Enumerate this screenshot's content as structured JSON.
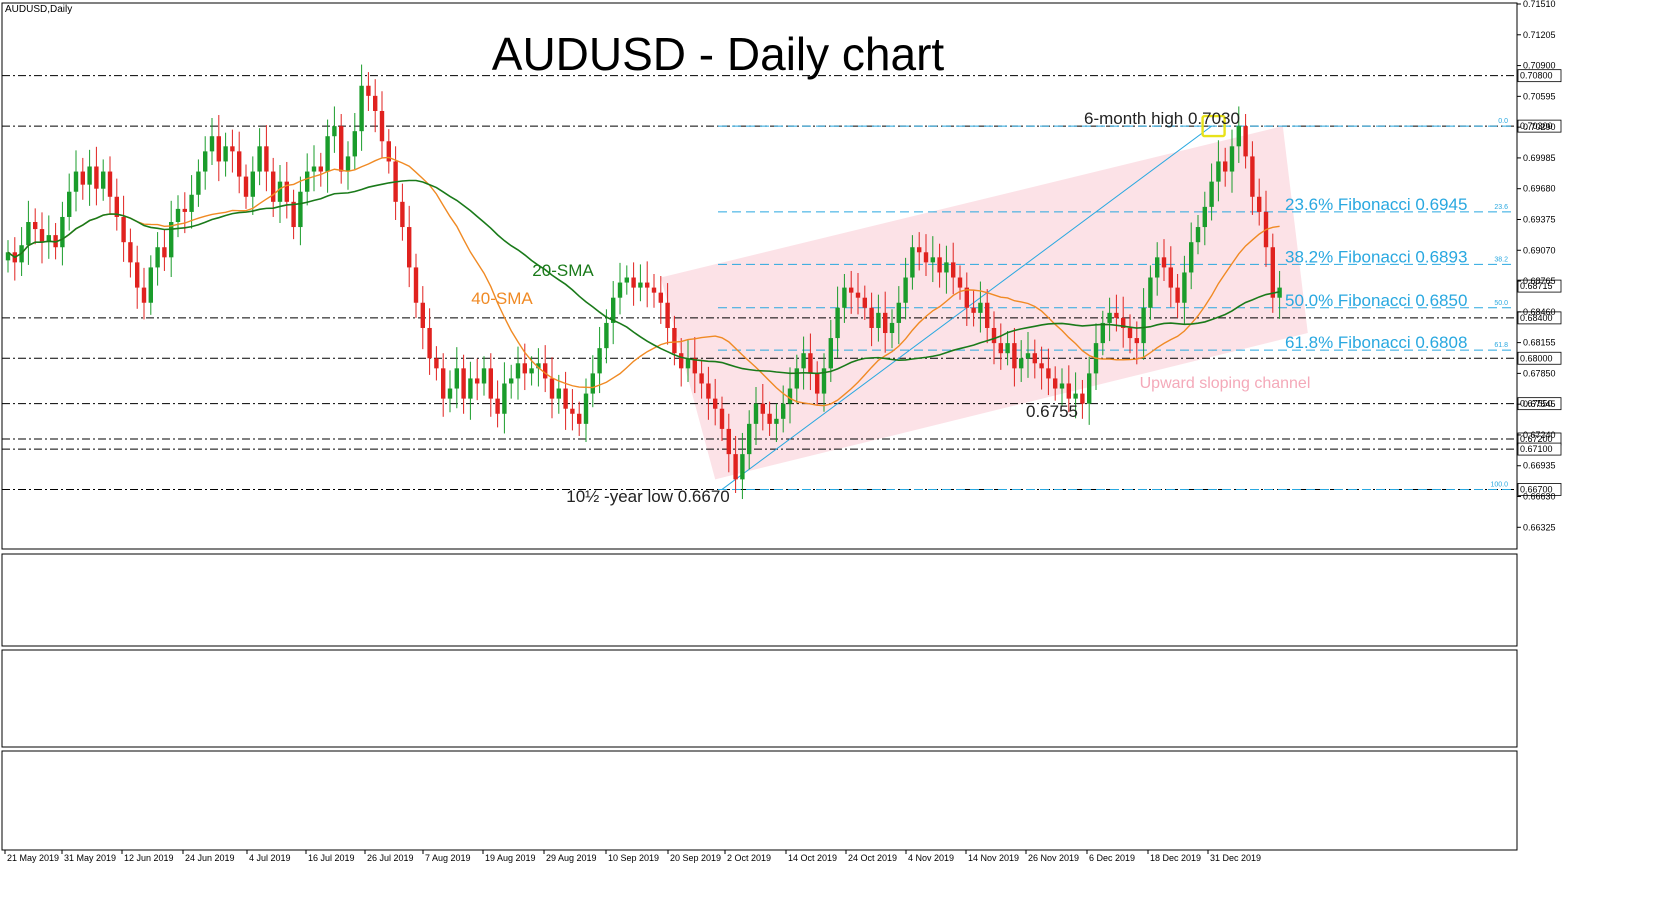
{
  "chart_data": {
    "type": "candlestick",
    "title": "AUDUSD - Daily chart",
    "symbol_label": "AUDUSD,Daily",
    "x_ticks": [
      "21 May 2019",
      "31 May 2019",
      "12 Jun 2019",
      "24 Jun 2019",
      "4 Jul 2019",
      "16 Jul 2019",
      "26 Jul 2019",
      "7 Aug 2019",
      "19 Aug 2019",
      "29 Aug 2019",
      "10 Sep 2019",
      "20 Sep 2019",
      "2 Oct 2019",
      "14 Oct 2019",
      "24 Oct 2019",
      "4 Nov 2019",
      "14 Nov 2019",
      "26 Nov 2019",
      "6 Dec 2019",
      "18 Dec 2019",
      "31 Dec 2019"
    ],
    "y_ticks": [
      "0.71510",
      "0.71205",
      "0.70900",
      "0.70595",
      "0.70290",
      "0.69985",
      "0.69680",
      "0.69375",
      "0.69070",
      "0.68765",
      "0.68460",
      "0.68155",
      "0.67850",
      "0.67545",
      "0.67240",
      "0.66935",
      "0.66630",
      "0.66325"
    ],
    "y_range": [
      0.6611,
      0.7152
    ],
    "current_price": "0.68715",
    "horizontal_levels": [
      {
        "price": 0.708,
        "label": "0.70800"
      },
      {
        "price": 0.703,
        "label": "0.70300"
      },
      {
        "price": 0.684,
        "label": "0.68400"
      },
      {
        "price": 0.68,
        "label": "0.68000"
      },
      {
        "price": 0.6755,
        "label": "0.67550"
      },
      {
        "price": 0.672,
        "label": "0.67200"
      },
      {
        "price": 0.671,
        "label": "0.67100"
      },
      {
        "price": 0.667,
        "label": "0.66700"
      }
    ],
    "fibonacci": [
      {
        "level": "0.0",
        "price": 0.703,
        "text": ""
      },
      {
        "level": "23.6",
        "price": 0.6945,
        "text": "23.6% Fibonacci 0.6945"
      },
      {
        "level": "38.2",
        "price": 0.6893,
        "text": "38.2% Fibonacci 0.6893"
      },
      {
        "level": "50.0",
        "price": 0.685,
        "text": "50.0% Fibonacci 0.6850"
      },
      {
        "level": "61.8",
        "price": 0.6808,
        "text": "61.8% Fibonacci 0.6808"
      },
      {
        "level": "100.0",
        "price": 0.667,
        "text": ""
      }
    ],
    "annotations": {
      "high": "6-month high 0.7030",
      "low": "10½ -year low 0.6670",
      "swing_low": "0.6755",
      "channel": "Upward sloping channel",
      "sma20": "20-SMA",
      "sma40": "40-SMA"
    },
    "closes": [
      0.6905,
      0.6895,
      0.6912,
      0.6935,
      0.6928,
      0.6915,
      0.6922,
      0.691,
      0.694,
      0.6965,
      0.6985,
      0.6972,
      0.699,
      0.6968,
      0.6985,
      0.696,
      0.694,
      0.6915,
      0.6895,
      0.687,
      0.6855,
      0.689,
      0.691,
      0.69,
      0.6935,
      0.6948,
      0.6945,
      0.6962,
      0.6985,
      0.7005,
      0.702,
      0.6995,
      0.701,
      0.7005,
      0.698,
      0.696,
      0.6985,
      0.701,
      0.6985,
      0.6955,
      0.6975,
      0.6955,
      0.693,
      0.6965,
      0.6985,
      0.699,
      0.6985,
      0.702,
      0.703,
      0.6985,
      0.7,
      0.7025,
      0.707,
      0.706,
      0.7045,
      0.7015,
      0.6995,
      0.6955,
      0.693,
      0.689,
      0.6855,
      0.683,
      0.68,
      0.679,
      0.676,
      0.677,
      0.679,
      0.676,
      0.678,
      0.6775,
      0.679,
      0.676,
      0.6745,
      0.6775,
      0.678,
      0.6795,
      0.6785,
      0.679,
      0.6795,
      0.678,
      0.676,
      0.677,
      0.675,
      0.6745,
      0.6735,
      0.6765,
      0.6785,
      0.681,
      0.6835,
      0.686,
      0.6875,
      0.688,
      0.687,
      0.6875,
      0.687,
      0.6865,
      0.6855,
      0.683,
      0.6805,
      0.679,
      0.68,
      0.6785,
      0.6775,
      0.676,
      0.675,
      0.673,
      0.6705,
      0.668,
      0.6705,
      0.6735,
      0.6755,
      0.6745,
      0.6735,
      0.674,
      0.6755,
      0.677,
      0.679,
      0.6805,
      0.6785,
      0.6765,
      0.679,
      0.682,
      0.685,
      0.687,
      0.6865,
      0.686,
      0.685,
      0.683,
      0.6845,
      0.6825,
      0.6835,
      0.6855,
      0.688,
      0.691,
      0.6905,
      0.6895,
      0.69,
      0.6885,
      0.6895,
      0.688,
      0.687,
      0.685,
      0.6845,
      0.6855,
      0.683,
      0.6815,
      0.6805,
      0.6815,
      0.679,
      0.68,
      0.6805,
      0.6795,
      0.679,
      0.678,
      0.677,
      0.6775,
      0.676,
      0.6765,
      0.6755,
      0.6785,
      0.6815,
      0.6835,
      0.6845,
      0.684,
      0.683,
      0.682,
      0.6815,
      0.685,
      0.688,
      0.69,
      0.689,
      0.687,
      0.6855,
      0.6885,
      0.6915,
      0.693,
      0.695,
      0.6975,
      0.6995,
      0.6985,
      0.701,
      0.703,
      0.7,
      0.696,
      0.6945,
      0.691,
      0.686,
      0.687
    ]
  }
}
